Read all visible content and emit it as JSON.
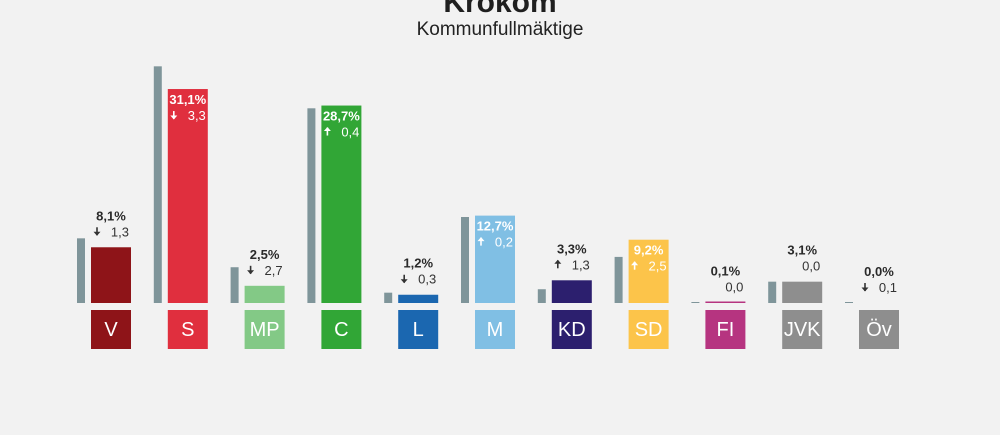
{
  "chart_data": {
    "type": "bar",
    "title": "Krokom",
    "subtitle": "Kommunfullmäktige",
    "categories": [
      "V",
      "S",
      "MP",
      "C",
      "L",
      "M",
      "KD",
      "SD",
      "FI",
      "JVK",
      "Öv"
    ],
    "series": [
      {
        "values": [
          9.4,
          34.4,
          5.2,
          28.3,
          1.5,
          12.5,
          2.0,
          6.7,
          0.1,
          3.1,
          0.1
        ]
      },
      {
        "values": [
          8.1,
          31.1,
          2.5,
          28.7,
          1.2,
          12.7,
          3.3,
          9.2,
          0.1,
          3.1,
          0.0
        ]
      }
    ],
    "value_labels": [
      "8,1%",
      "31,1%",
      "2,5%",
      "28,7%",
      "1,2%",
      "12,7%",
      "3,3%",
      "9,2%",
      "0,1%",
      "3,1%",
      "0,0%"
    ],
    "change_labels": [
      "1,3",
      "3,3",
      "2,7",
      "0,4",
      "0,3",
      "0,2",
      "1,3",
      "2,5",
      "0,0",
      "0,0",
      "0,1"
    ],
    "change_direction": [
      "down",
      "down",
      "down",
      "up",
      "down",
      "up",
      "up",
      "up",
      "none",
      "none",
      "down"
    ],
    "colors": [
      "#8e1418",
      "#e02f3e",
      "#83c986",
      "#31a636",
      "#1b67b0",
      "#80bfe4",
      "#2c1f6e",
      "#fcc44a",
      "#b63480",
      "#8e8e8e",
      "#8e8e8e"
    ],
    "previous_color": "#7f959a",
    "ylim": [
      0,
      35
    ]
  }
}
